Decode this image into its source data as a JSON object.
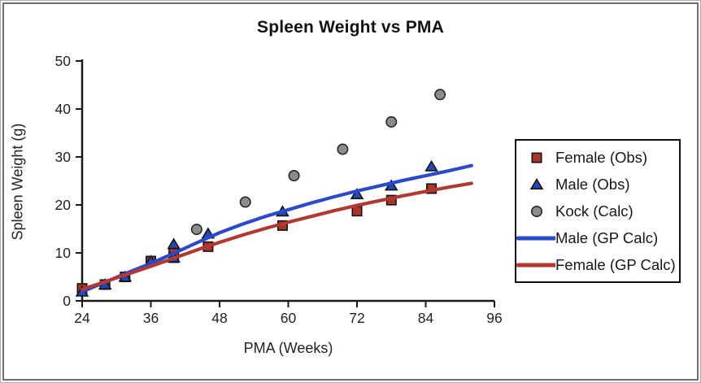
{
  "chart_data": {
    "type": "scatter",
    "title": "Spleen Weight vs PMA",
    "xlabel": "PMA (Weeks)",
    "ylabel": "Spleen Weight (g)",
    "xlim": [
      24,
      96
    ],
    "ylim": [
      0,
      50
    ],
    "xticks": [
      24,
      36,
      48,
      60,
      72,
      84,
      96
    ],
    "yticks": [
      0,
      10,
      20,
      30,
      40,
      50
    ],
    "grid": false,
    "legend_position": "right-outside",
    "series": [
      {
        "name": "Female (Obs)",
        "type": "scatter",
        "marker": "square",
        "color": "#A93428",
        "stroke": "#141414",
        "points": [
          [
            24,
            2.6
          ],
          [
            28,
            3.4
          ],
          [
            31.5,
            5.0
          ],
          [
            36,
            8.3
          ],
          [
            40,
            10.1
          ],
          [
            40,
            9.0
          ],
          [
            46,
            11.3
          ],
          [
            59,
            15.7
          ],
          [
            72,
            18.7
          ],
          [
            78,
            21.0
          ],
          [
            85,
            23.4
          ]
        ]
      },
      {
        "name": "Male (Obs)",
        "type": "scatter",
        "marker": "triangle",
        "color": "#2746B4",
        "stroke": "#141414",
        "points": [
          [
            24,
            1.9
          ],
          [
            28,
            3.4
          ],
          [
            31.5,
            5.0
          ],
          [
            36,
            8.3
          ],
          [
            40,
            11.8
          ],
          [
            40,
            9.0
          ],
          [
            46,
            14.0
          ],
          [
            59,
            18.6
          ],
          [
            72,
            22.2
          ],
          [
            78,
            24.0
          ],
          [
            85,
            28.0
          ]
        ]
      },
      {
        "name": "Kock (Calc)",
        "type": "scatter",
        "marker": "circle",
        "color": "#8C8C8C",
        "stroke": "#262626",
        "points": [
          [
            44,
            14.9
          ],
          [
            52.5,
            20.6
          ],
          [
            61,
            26.1
          ],
          [
            69.5,
            31.6
          ],
          [
            78,
            37.3
          ],
          [
            86.5,
            43.0
          ]
        ]
      },
      {
        "name": "Male (GP Calc)",
        "type": "line",
        "color": "#2B49C8",
        "points": [
          [
            24,
            1.9
          ],
          [
            28,
            3.9
          ],
          [
            32,
            5.9
          ],
          [
            36,
            7.8
          ],
          [
            40,
            9.9
          ],
          [
            44,
            12.1
          ],
          [
            48,
            14.2
          ],
          [
            52,
            16.0
          ],
          [
            56,
            17.6
          ],
          [
            60,
            19.0
          ],
          [
            64,
            20.4
          ],
          [
            68,
            21.7
          ],
          [
            72,
            22.9
          ],
          [
            76,
            24.0
          ],
          [
            80,
            25.1
          ],
          [
            84,
            26.1
          ],
          [
            88,
            27.1
          ],
          [
            92,
            28.2
          ]
        ]
      },
      {
        "name": "Female (GP Calc)",
        "type": "line",
        "color": "#B03A33",
        "points": [
          [
            24,
            2.4
          ],
          [
            28,
            4.0
          ],
          [
            32,
            5.6
          ],
          [
            36,
            7.2
          ],
          [
            40,
            8.9
          ],
          [
            44,
            10.6
          ],
          [
            48,
            12.2
          ],
          [
            52,
            13.7
          ],
          [
            56,
            15.1
          ],
          [
            60,
            16.4
          ],
          [
            64,
            17.6
          ],
          [
            68,
            18.8
          ],
          [
            72,
            19.9
          ],
          [
            76,
            20.9
          ],
          [
            80,
            21.9
          ],
          [
            84,
            22.8
          ],
          [
            88,
            23.7
          ],
          [
            92,
            24.5
          ]
        ]
      }
    ]
  },
  "colors": {
    "axis": "#1a1a1a",
    "tick_label": "#212121",
    "frame_outer": "#ababab",
    "frame_inner": "#6f6f6f",
    "legend_border": "#101010",
    "background": "#ffffff"
  }
}
